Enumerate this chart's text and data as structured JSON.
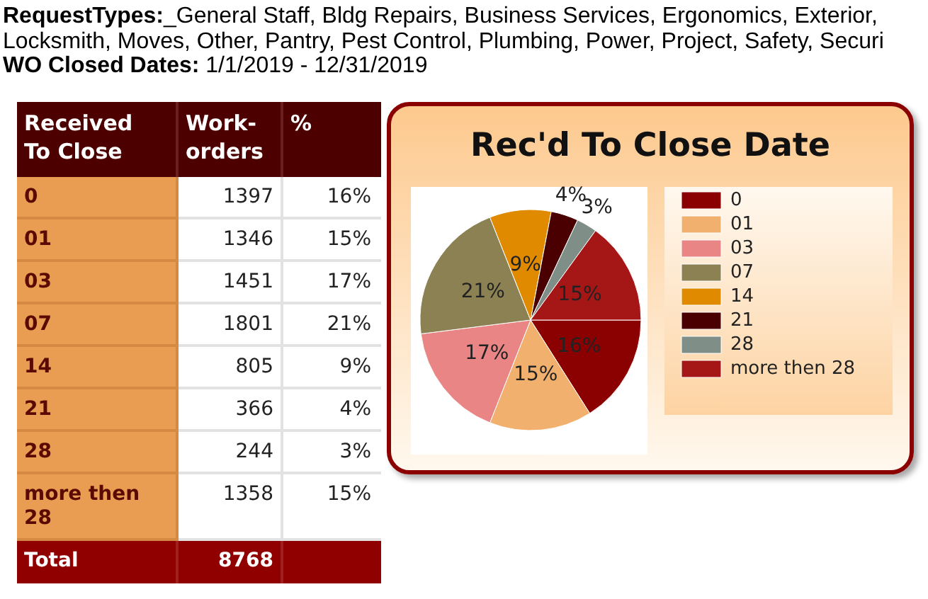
{
  "chart_data": [
    {
      "type": "heatmap",
      "subtitle": "RequestTypes:_General Staff, Bldg Repairs, Business Services, Ergonomics, Exterior,",
      "annotations": [
        "Locksmith, Moves, Other, Pantry, Pest Control, Plumbing, Power, Project, Safety, Securi",
        "WO Closed Dates: 1/1/2019 - 12/31/2019",
        "Total"
      ],
      "ylabel": "Received To Close",
      "categories": [
        "Work-orders"
      ],
      "y_categories": [
        "0",
        "01",
        "03",
        "07",
        "14",
        "21",
        "28",
        "more then 28"
      ],
      "cells": [
        [
          1397
        ],
        [
          1346
        ],
        [
          1451
        ],
        [
          1801
        ],
        [
          805
        ],
        [
          366
        ],
        [
          244
        ],
        [
          1358
        ]
      ],
      "data_labels": true,
      "totals": [
        "8768"
      ]
    },
    {
      "type": "pie",
      "title": "Rec'd To Close Date",
      "annotations": [
        "%"
      ],
      "categories": [
        "0",
        "01",
        "03",
        "07",
        "14",
        "21",
        "28",
        "more then 28"
      ],
      "values": [
        16,
        15,
        17,
        21,
        9,
        4,
        3,
        15
      ],
      "value_labels": [
        "16%",
        "15%",
        "17%",
        "21%",
        "9%",
        "4%",
        "3%",
        "15%"
      ],
      "colors": [
        "#8b0000",
        "#f2b06e",
        "#ea8585",
        "#8c8152",
        "#e08a00",
        "#4a0000",
        "#7f8e86",
        "#a51616"
      ],
      "legend": "right"
    }
  ]
}
